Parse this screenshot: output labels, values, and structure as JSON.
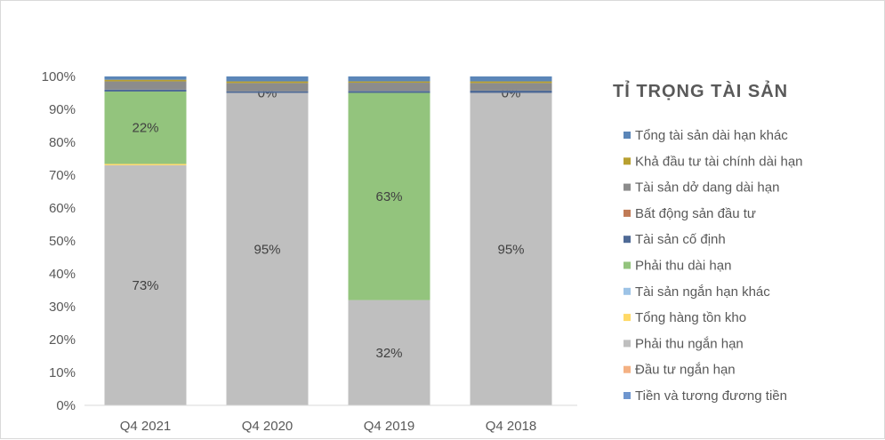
{
  "chart_data": {
    "type": "bar",
    "stacked": true,
    "title": "TỈ TRỌNG TÀI SẢN",
    "categories": [
      "Q4 2021",
      "Q4 2020",
      "Q4 2019",
      "Q4 2018"
    ],
    "ylim": [
      0,
      100
    ],
    "yticks": [
      "0%",
      "10%",
      "20%",
      "30%",
      "40%",
      "50%",
      "60%",
      "70%",
      "80%",
      "90%",
      "100%"
    ],
    "grid": false,
    "legend_position": "right",
    "series": [
      {
        "name": "Tiền và tương đương tiền",
        "color": "#6f96cf",
        "values": [
          0,
          0,
          0,
          0
        ]
      },
      {
        "name": "Đầu tư ngắn hạn",
        "color": "#f4b183",
        "values": [
          0,
          0,
          0,
          0
        ]
      },
      {
        "name": "Phải thu ngắn hạn",
        "color": "#bfbfbf",
        "values": [
          73,
          95,
          32,
          95
        ],
        "labels": [
          "73%",
          "95%",
          "32%",
          "95%"
        ]
      },
      {
        "name": "Tổng hàng tồn kho",
        "color": "#ffd966",
        "values": [
          0.4,
          0,
          0,
          0
        ]
      },
      {
        "name": "Tài sản ngắn hạn khác",
        "color": "#9dc3e6",
        "values": [
          0,
          0,
          0,
          0
        ]
      },
      {
        "name": "Phải thu dài hạn",
        "color": "#93c47d",
        "values": [
          22,
          0,
          63,
          0
        ],
        "labels": [
          "22%",
          "0%",
          "63%",
          "0%"
        ]
      },
      {
        "name": "Tài sản cố định",
        "color": "#4f6a96",
        "values": [
          0.6,
          0.5,
          0.6,
          0.7
        ]
      },
      {
        "name": "Bất động sản đầu tư",
        "color": "#c07a55",
        "values": [
          0,
          0,
          0,
          0
        ]
      },
      {
        "name": "Tài sản dở dang dài hạn",
        "color": "#8c8c8c",
        "values": [
          2.5,
          2.5,
          2.5,
          2.3
        ]
      },
      {
        "name": "Khả đầu tư tài chính dài hạn",
        "color": "#b8a030",
        "values": [
          0.5,
          0.5,
          0.4,
          0.5
        ]
      },
      {
        "name": "Tổng tài sản dài hạn khác",
        "color": "#5b86b8",
        "values": [
          1.0,
          1.5,
          1.5,
          1.5
        ]
      }
    ]
  }
}
